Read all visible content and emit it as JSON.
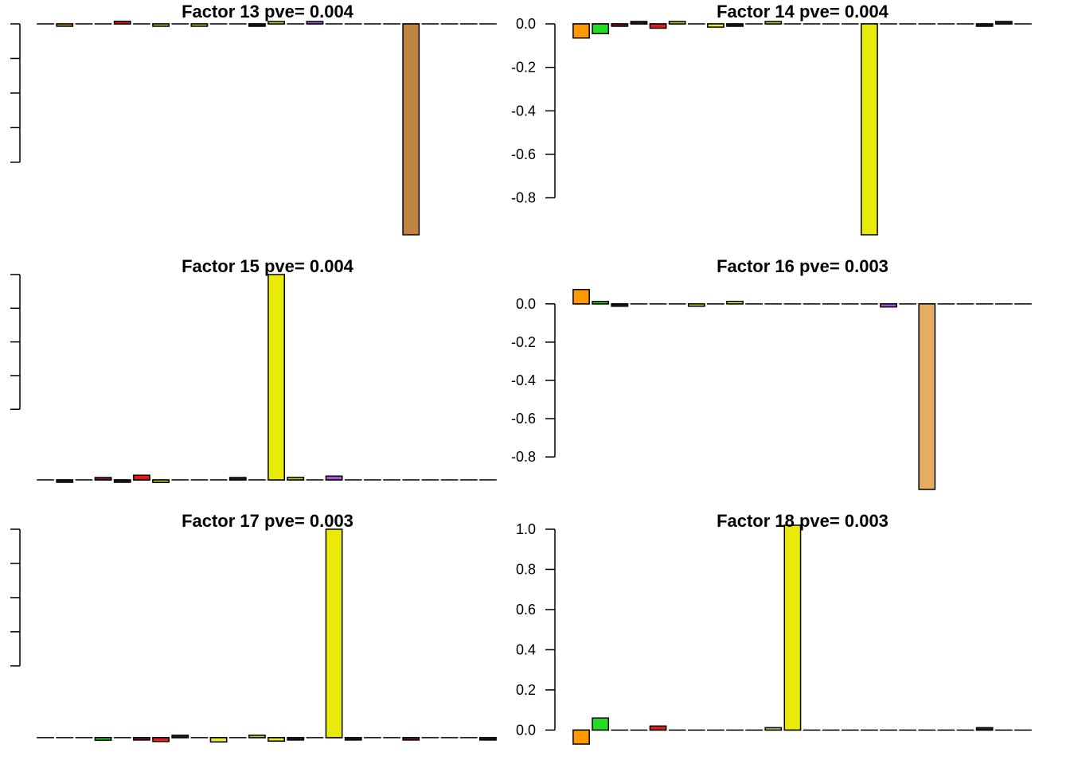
{
  "chart_data": [
    {
      "type": "bar",
      "title": "Factor 13 pve= 0.004",
      "ylim": [
        -0.97,
        0.0
      ],
      "yticks": [],
      "show_tick_labels": false,
      "tick_count": 5,
      "values": [
        0,
        -0.01,
        0,
        0,
        0.012,
        0,
        -0.008,
        0,
        -0.008,
        0,
        0,
        -0.003,
        0.006,
        0,
        0.01,
        0,
        0,
        0,
        0,
        -0.97,
        0,
        0,
        0,
        0
      ],
      "colors": [
        "#FF9900",
        "#C8902A",
        "#D98A2A",
        "#8B1A1A",
        "#E81A1A",
        "#22DD22",
        "#C8C81A",
        "#A8A8A8",
        "#C8C81A",
        "#A8A8A8",
        "#A8A8A8",
        "#222222",
        "#D4D41A",
        "#A8A8A8",
        "#B04EE0",
        "#A8A8A8",
        "#C08A4A",
        "#A8A8A8",
        "#A8A8A8",
        "#C08440",
        "#A8A8A8",
        "#A8A8A8",
        "#A8A8A8",
        "#A8A8A8"
      ]
    },
    {
      "type": "bar",
      "title": "Factor 14 pve= 0.004",
      "ylim": [
        -0.97,
        0.0
      ],
      "yticks": [
        "0.0",
        "-0.2",
        "-0.4",
        "-0.6",
        "-0.8"
      ],
      "show_tick_labels": true,
      "values": [
        -0.065,
        -0.045,
        -0.008,
        0.003,
        -0.02,
        0.01,
        0,
        -0.015,
        -0.003,
        0,
        0.006,
        0,
        0,
        0,
        0,
        -0.97,
        0,
        0,
        0,
        0,
        0,
        -0.003,
        0.002,
        0
      ],
      "colors": [
        "#FF9900",
        "#22DD22",
        "#8B1A1A",
        "#222222",
        "#E81A1A",
        "#C8C81A",
        "#A8A8A8",
        "#EAEA2A",
        "#222222",
        "#A8A8A8",
        "#C8C81A",
        "#A8A8A8",
        "#A8A8A8",
        "#A8A8A8",
        "#A8A8A8",
        "#EAEA0A",
        "#A8A8A8",
        "#A8A8A8",
        "#A8A8A8",
        "#A8A8A8",
        "#A8A8A8",
        "#222222",
        "#222222",
        "#A8A8A8"
      ]
    },
    {
      "type": "bar",
      "title": "Factor 15 pve= 0.004",
      "ylim": [
        -0.03,
        0.97
      ],
      "yticks": [],
      "show_tick_labels": false,
      "tick_count": 5,
      "values": [
        0,
        -0.005,
        0,
        0.008,
        -0.006,
        0.022,
        -0.012,
        0,
        0,
        0,
        0.005,
        0,
        0.97,
        0.012,
        0,
        0.018,
        0,
        0,
        0,
        0,
        0,
        0,
        0,
        0
      ],
      "colors": [
        "#A8A8A8",
        "#222222",
        "#A8A8A8",
        "#8B1A1A",
        "#222222",
        "#E81A1A",
        "#C8C81A",
        "#A8A8A8",
        "#A8A8A8",
        "#A8A8A8",
        "#222222",
        "#A8A8A8",
        "#EAEA0A",
        "#C8C81A",
        "#A8A8A8",
        "#B04EE0",
        "#A8A8A8",
        "#A8A8A8",
        "#A8A8A8",
        "#A8A8A8",
        "#A8A8A8",
        "#A8A8A8",
        "#A8A8A8",
        "#A8A8A8"
      ]
    },
    {
      "type": "bar",
      "title": "Factor 16 pve= 0.003",
      "ylim": [
        -0.97,
        0.07
      ],
      "yticks": [
        "0.0",
        "-0.2",
        "-0.4",
        "-0.6",
        "-0.8"
      ],
      "show_tick_labels": true,
      "values": [
        0.075,
        0.012,
        -0.004,
        0,
        0,
        0,
        -0.01,
        0,
        0.013,
        0,
        0,
        0,
        0,
        0,
        0,
        0,
        -0.016,
        0,
        -0.97,
        0,
        0,
        0,
        0,
        0
      ],
      "colors": [
        "#FF9900",
        "#22DD22",
        "#222222",
        "#A8A8A8",
        "#A8A8A8",
        "#A8A8A8",
        "#C8C81A",
        "#A8A8A8",
        "#EAEA2A",
        "#A8A8A8",
        "#A8A8A8",
        "#A8A8A8",
        "#A8A8A8",
        "#A8A8A8",
        "#A8A8A8",
        "#A8A8A8",
        "#B04EE0",
        "#A8A8A8",
        "#E6AD60",
        "#A8A8A8",
        "#A8A8A8",
        "#A8A8A8",
        "#A8A8A8",
        "#A8A8A8"
      ]
    },
    {
      "type": "bar",
      "title": "Factor 17 pve= 0.003",
      "ylim": [
        -0.03,
        0.97
      ],
      "yticks": [],
      "show_tick_labels": false,
      "tick_count": 5,
      "values": [
        0,
        0,
        0,
        -0.012,
        0,
        -0.006,
        -0.018,
        0.006,
        0,
        -0.02,
        0,
        0.01,
        -0.016,
        -0.003,
        0,
        0.97,
        -0.004,
        0,
        0,
        -0.005,
        0,
        0,
        0,
        -0.003
      ],
      "colors": [
        "#A8A8A8",
        "#A8A8A8",
        "#A8A8A8",
        "#22DD22",
        "#A8A8A8",
        "#8B1A1A",
        "#E81A1A",
        "#222222",
        "#A8A8A8",
        "#EAEA2A",
        "#A8A8A8",
        "#C8C81A",
        "#EAEA2A",
        "#222222",
        "#A8A8A8",
        "#EAEA0A",
        "#222222",
        "#A8A8A8",
        "#A8A8A8",
        "#8B1A1A",
        "#A8A8A8",
        "#A8A8A8",
        "#A8A8A8",
        "#222222"
      ]
    },
    {
      "type": "bar",
      "title": "Factor 18 pve= 0.003",
      "ylim": [
        -0.07,
        1.0
      ],
      "yticks": [
        "1.0",
        "0.8",
        "0.6",
        "0.4",
        "0.2",
        "0.0"
      ],
      "show_tick_labels": true,
      "values": [
        -0.07,
        0.06,
        0,
        0,
        0.02,
        0,
        0,
        0,
        0,
        0,
        0.01,
        1.02,
        0,
        0,
        0,
        0,
        0,
        0,
        0,
        0,
        0,
        0.003,
        0,
        0
      ],
      "colors": [
        "#FF9900",
        "#22DD22",
        "#A8A8A8",
        "#A8A8A8",
        "#E81A1A",
        "#A8A8A8",
        "#A8A8A8",
        "#A8A8A8",
        "#A8A8A8",
        "#A8A8A8",
        "#C8C81A",
        "#EAEA0A",
        "#A8A8A8",
        "#A8A8A8",
        "#A8A8A8",
        "#A8A8A8",
        "#A8A8A8",
        "#A8A8A8",
        "#A8A8A8",
        "#A8A8A8",
        "#A8A8A8",
        "#222222",
        "#A8A8A8",
        "#A8A8A8"
      ]
    }
  ]
}
